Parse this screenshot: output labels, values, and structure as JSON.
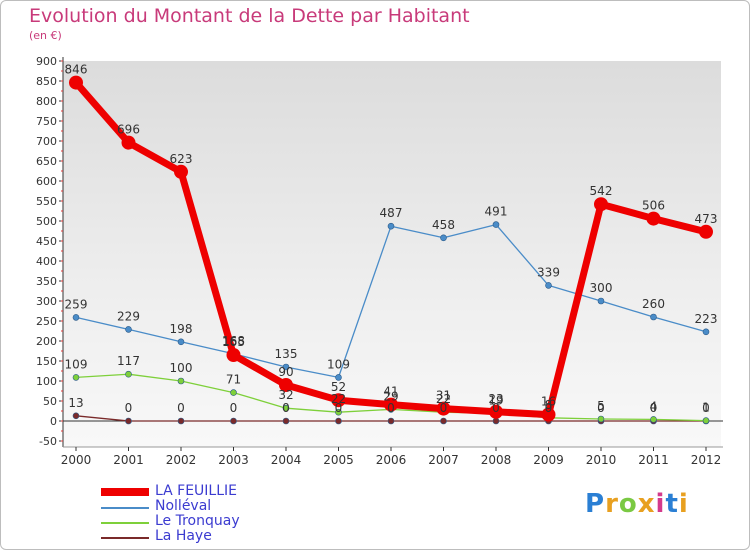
{
  "header": {
    "title": "Evolution du Montant de la Dette par Habitant",
    "subtitle": "(en €)"
  },
  "brand": {
    "text": "Proxiti"
  },
  "chart_data": {
    "type": "line",
    "title": "Evolution du Montant de la Dette par Habitant",
    "subtitle": "(en €)",
    "x": [
      "2000",
      "2001",
      "2002",
      "2003",
      "2004",
      "2005",
      "2006",
      "2007",
      "2008",
      "2009",
      "2010",
      "2011",
      "2012"
    ],
    "ylim": [
      -50,
      900
    ],
    "yticks": [
      -50,
      0,
      50,
      100,
      150,
      200,
      250,
      300,
      350,
      400,
      450,
      500,
      550,
      600,
      650,
      700,
      750,
      800,
      850,
      900
    ],
    "grid": false,
    "legend_position": "bottom-left",
    "series": [
      {
        "name": "LA FEUILLIE",
        "color": "#ee0000",
        "values": [
          846,
          696,
          623,
          165,
          90,
          52,
          41,
          31,
          23,
          16,
          542,
          506,
          473
        ],
        "labels": [
          "846",
          "696",
          "623",
          "165",
          "90",
          "52",
          "41",
          "31",
          "23",
          "16",
          "542",
          "506",
          "473"
        ]
      },
      {
        "name": "Nolléval",
        "color": "#4a8cc8",
        "values": [
          259,
          229,
          198,
          168,
          135,
          109,
          487,
          458,
          491,
          339,
          300,
          260,
          223
        ],
        "labels": [
          "259",
          "229",
          "198",
          "168",
          "135",
          "109",
          "487",
          "458",
          "491",
          "339",
          "300",
          "260",
          "223"
        ]
      },
      {
        "name": "Le Tronquay",
        "color": "#7ed03a",
        "values": [
          109,
          117,
          100,
          71,
          32,
          22,
          29,
          22,
          19,
          8,
          5,
          4,
          1
        ],
        "labels": [
          "109",
          "117",
          "100",
          "71",
          "32",
          "22",
          "29",
          "22",
          "19",
          "8",
          "5",
          "4",
          "1"
        ]
      },
      {
        "name": "La Haye",
        "color": "#7a2a2a",
        "values": [
          13,
          0,
          0,
          0,
          0,
          0,
          0,
          0,
          0,
          0,
          0,
          0,
          0
        ],
        "labels": [
          "13",
          "0",
          "0",
          "0",
          "0",
          "0",
          "0",
          "0",
          "0",
          "0",
          "0",
          "0",
          "0"
        ]
      }
    ]
  }
}
